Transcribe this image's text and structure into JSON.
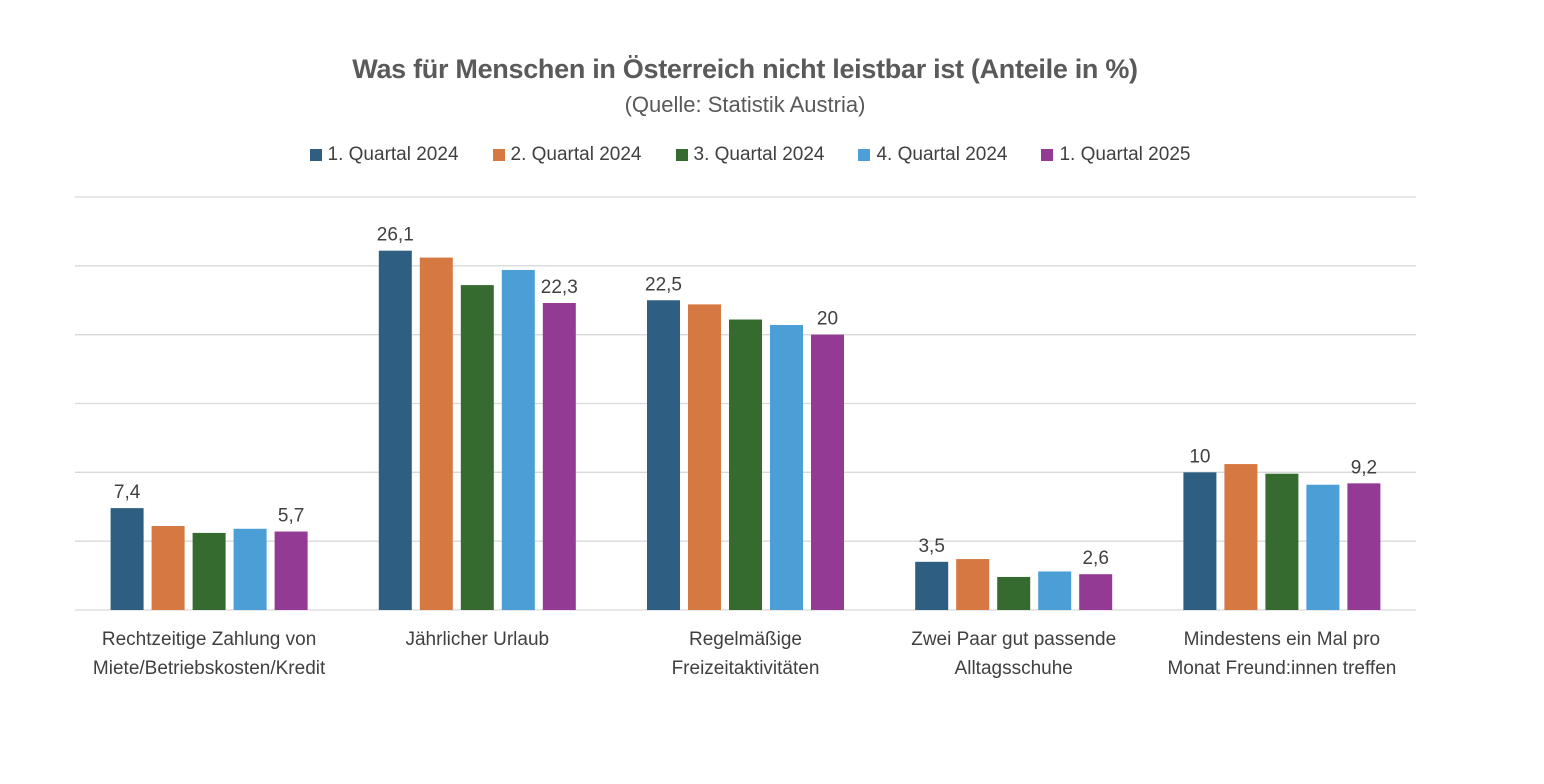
{
  "chart_data": {
    "type": "bar",
    "title": "Was für Menschen in Österreich nicht leistbar ist (Anteile in %)",
    "subtitle": "(Quelle: Statistik Austria)",
    "categories": [
      [
        "Rechtzeitige Zahlung von",
        "Miete/Betriebskosten/Kredit"
      ],
      [
        "Jährlicher Urlaub"
      ],
      [
        "Regelmäßige",
        "Freizeitaktivitäten"
      ],
      [
        "Zwei Paar gut passende",
        "Alltagsschuhe"
      ],
      [
        "Mindestens ein Mal pro",
        "Monat Freund:innen treffen"
      ]
    ],
    "series": [
      {
        "name": "1. Quartal 2024",
        "color": "#2e5f82",
        "values": [
          7.4,
          26.1,
          22.5,
          3.5,
          10.0
        ]
      },
      {
        "name": "2. Quartal 2024",
        "color": "#d67841",
        "values": [
          6.1,
          25.6,
          22.2,
          3.7,
          10.6
        ]
      },
      {
        "name": "3. Quartal 2024",
        "color": "#356b2e",
        "values": [
          5.6,
          23.6,
          21.1,
          2.4,
          9.9
        ]
      },
      {
        "name": "4. Quartal 2024",
        "color": "#4b9ed6",
        "values": [
          5.9,
          24.7,
          20.7,
          2.8,
          9.1
        ]
      },
      {
        "name": "1. Quartal 2025",
        "color": "#933a94",
        "values": [
          5.7,
          22.3,
          20.0,
          2.6,
          9.2
        ]
      }
    ],
    "data_labels": [
      {
        "category": 0,
        "series": 0,
        "text": "7,4"
      },
      {
        "category": 0,
        "series": 4,
        "text": "5,7"
      },
      {
        "category": 1,
        "series": 0,
        "text": "26,1"
      },
      {
        "category": 1,
        "series": 4,
        "text": "22,3"
      },
      {
        "category": 2,
        "series": 0,
        "text": "22,5"
      },
      {
        "category": 2,
        "series": 4,
        "text": "20"
      },
      {
        "category": 3,
        "series": 0,
        "text": "3,5"
      },
      {
        "category": 3,
        "series": 4,
        "text": "2,6"
      },
      {
        "category": 4,
        "series": 0,
        "text": "10"
      },
      {
        "category": 4,
        "series": 4,
        "text": "9,2"
      }
    ],
    "ylim": [
      0,
      30
    ],
    "gridlines": [
      0,
      5,
      10,
      15,
      20,
      25,
      30
    ],
    "grid": true,
    "legend_position": "top"
  }
}
